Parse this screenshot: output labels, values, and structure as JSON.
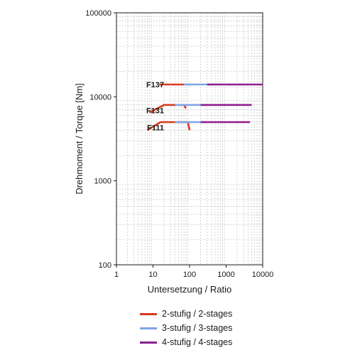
{
  "chart_data": {
    "type": "line",
    "xscale": "log",
    "yscale": "log",
    "xlim": [
      1,
      10000
    ],
    "ylim": [
      100,
      100000
    ],
    "xticks": [
      "1",
      "10",
      "100",
      "1000",
      "10000"
    ],
    "yticks": [
      "100",
      "1000",
      "10000",
      "100000"
    ],
    "xlabel": "Untersetzung / Ratio",
    "ylabel": "Drehmoment / Torque [Nm]",
    "grid": "dashed minor and major grid",
    "legend_position": "bottom",
    "legend": [
      {
        "key": "two",
        "label": "2-stufig / 2-stages",
        "color": "#d63a1e"
      },
      {
        "key": "three",
        "label": "3-stufig / 3-stages",
        "color": "#7fa6e6"
      },
      {
        "key": "four",
        "label": "4-stufig / 4-stages",
        "color": "#8e1e8e"
      }
    ],
    "groups": [
      {
        "name": "F137",
        "label_at": [
          14,
          14000
        ],
        "segments": [
          {
            "stage": "two",
            "points": [
              [
                15,
                14000
              ],
              [
                100,
                14000
              ]
            ]
          },
          {
            "stage": "three",
            "points": [
              [
                70,
                14000
              ],
              [
                700,
                14000
              ]
            ]
          },
          {
            "stage": "four",
            "points": [
              [
                300,
                14000
              ],
              [
                10000,
                14000
              ]
            ]
          }
        ]
      },
      {
        "name": "F131",
        "label_at": [
          14,
          6900
        ],
        "segments": [
          {
            "stage": "two",
            "points": [
              [
                8,
                6500
              ],
              [
                20,
                8000
              ],
              [
                70,
                8000
              ],
              [
                80,
                7300
              ]
            ]
          },
          {
            "stage": "three",
            "points": [
              [
                40,
                8000
              ],
              [
                300,
                8000
              ]
            ]
          },
          {
            "stage": "four",
            "points": [
              [
                200,
                8000
              ],
              [
                5000,
                8000
              ]
            ]
          }
        ]
      },
      {
        "name": "F111",
        "label_at": [
          14,
          4300
        ],
        "segments": [
          {
            "stage": "two",
            "points": [
              [
                7,
                4000
              ],
              [
                16,
                5000
              ],
              [
                90,
                5000
              ],
              [
                100,
                4000
              ]
            ]
          },
          {
            "stage": "three",
            "points": [
              [
                40,
                5000
              ],
              [
                300,
                5000
              ]
            ]
          },
          {
            "stage": "four",
            "points": [
              [
                200,
                5000
              ],
              [
                4500,
                5000
              ]
            ]
          }
        ]
      }
    ]
  }
}
